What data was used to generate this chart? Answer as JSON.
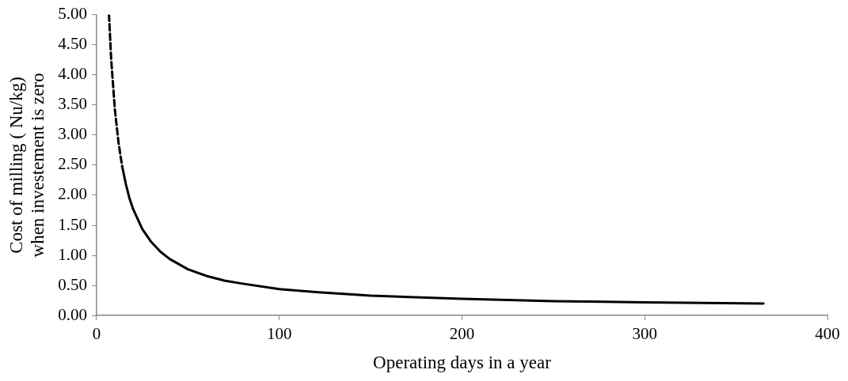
{
  "chart_data": {
    "type": "line",
    "xlabel": "Operating days in a year",
    "ylabel": "Cost of milling ( Nu/kg)\nwhen investement is zero",
    "xlim": [
      0,
      400
    ],
    "xticks": [
      0,
      100,
      200,
      300,
      400
    ],
    "ylim": [
      0,
      5
    ],
    "yticks": [
      {
        "value": 0,
        "label": "0.00"
      },
      {
        "value": 0.5,
        "label": "0.50"
      },
      {
        "value": 1,
        "label": "1.00"
      },
      {
        "value": 1.5,
        "label": "1.50"
      },
      {
        "value": 2,
        "label": "2.00"
      },
      {
        "value": 2.5,
        "label": "2.50"
      },
      {
        "value": 3,
        "label": "3.00"
      },
      {
        "value": 3.5,
        "label": "3.50"
      },
      {
        "value": 4,
        "label": "4.00"
      },
      {
        "value": 4.5,
        "label": "4.50"
      },
      {
        "value": 5,
        "label": "5.00"
      }
    ],
    "grid": false,
    "legend": false,
    "marker": "none",
    "series": [
      {
        "color": "#000000",
        "line_style": "dashed",
        "x": [
          6.8,
          8,
          10,
          12,
          14
        ],
        "values": [
          5.0,
          4.26,
          3.43,
          2.88,
          2.48
        ]
      },
      {
        "color": "#000000",
        "line_style": "solid",
        "x": [
          14,
          16,
          18,
          20,
          25,
          30,
          35,
          40,
          50,
          60,
          70,
          80,
          100,
          120,
          150,
          200,
          250,
          300,
          365
        ],
        "values": [
          2.48,
          2.19,
          1.95,
          1.77,
          1.44,
          1.22,
          1.06,
          0.94,
          0.77,
          0.66,
          0.58,
          0.53,
          0.44,
          0.39,
          0.33,
          0.28,
          0.24,
          0.22,
          0.2
        ]
      }
    ]
  }
}
